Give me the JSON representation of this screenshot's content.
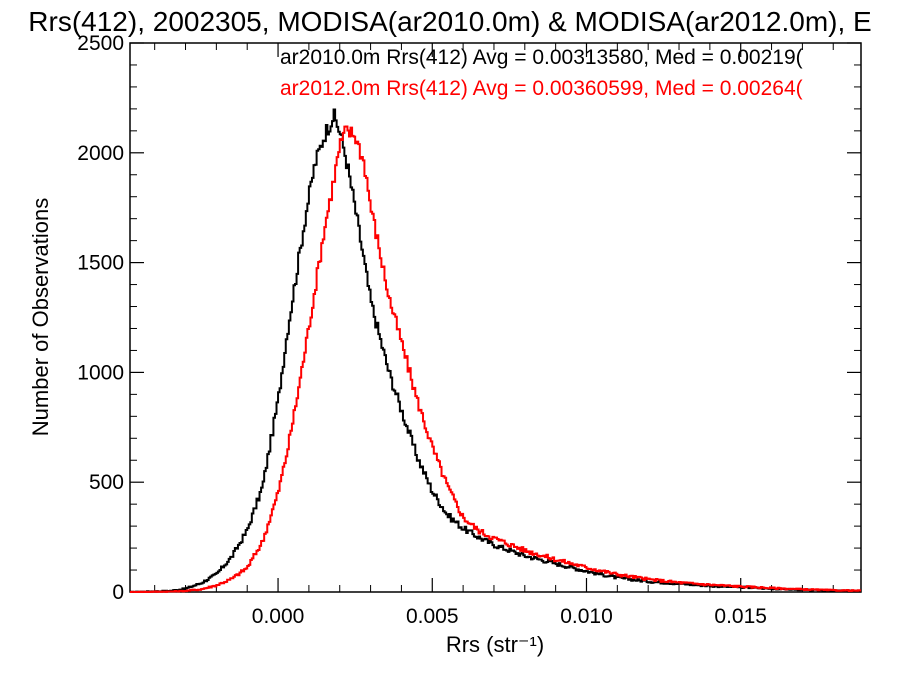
{
  "chart_data": {
    "type": "histogram",
    "title": "Rrs(412), 2002305, MODISA(ar2010.0m) & MODISA(ar2012.0m), E",
    "xlabel": "Rrs (str⁻¹)",
    "ylabel": "Number of Observations",
    "xlim": [
      -0.0048,
      0.0189
    ],
    "ylim": [
      0,
      2500
    ],
    "xticks": [
      0.0,
      0.005,
      0.01,
      0.015
    ],
    "xtick_labels": [
      "0.000",
      "0.005",
      "0.010",
      "0.015"
    ],
    "yticks": [
      0,
      500,
      1000,
      1500,
      2000,
      2500
    ],
    "ytick_labels": [
      "0",
      "500",
      "1000",
      "1500",
      "2000",
      "2500"
    ],
    "grid": false,
    "legend_placement": "top",
    "series": [
      {
        "name": "ar2010.0m",
        "legend_text": "ar2010.0m Rrs(412) Avg = 0.00313580, Med = 0.00219(",
        "color": "#000000",
        "x": [
          -0.0048,
          -0.0035,
          -0.003,
          -0.0025,
          -0.002,
          -0.0015,
          -0.001,
          -0.0005,
          0.0,
          0.0003,
          0.0006,
          0.0009,
          0.0012,
          0.0015,
          0.0018,
          0.002,
          0.0022,
          0.0025,
          0.0028,
          0.003,
          0.0033,
          0.0036,
          0.004,
          0.0045,
          0.005,
          0.0055,
          0.006,
          0.0065,
          0.007,
          0.008,
          0.009,
          0.01,
          0.011,
          0.012,
          0.013,
          0.014,
          0.015,
          0.016,
          0.017,
          0.018,
          0.0189
        ],
        "y": [
          0,
          5,
          15,
          40,
          80,
          160,
          280,
          480,
          870,
          1180,
          1450,
          1720,
          1950,
          2080,
          2170,
          2100,
          1980,
          1750,
          1500,
          1330,
          1160,
          1000,
          830,
          620,
          460,
          350,
          290,
          250,
          215,
          165,
          130,
          95,
          65,
          48,
          38,
          28,
          22,
          15,
          10,
          6,
          5
        ]
      },
      {
        "name": "ar2012.0m",
        "legend_text": "ar2012.0m Rrs(412) Avg = 0.00360599, Med = 0.00264(",
        "color": "#ff0000",
        "x": [
          -0.0048,
          -0.0035,
          -0.003,
          -0.0025,
          -0.002,
          -0.0015,
          -0.001,
          -0.0005,
          0.0,
          0.0003,
          0.0006,
          0.0009,
          0.0012,
          0.0015,
          0.0018,
          0.002,
          0.0022,
          0.0025,
          0.0028,
          0.003,
          0.0033,
          0.0036,
          0.004,
          0.0045,
          0.005,
          0.0055,
          0.006,
          0.0065,
          0.007,
          0.008,
          0.009,
          0.01,
          0.011,
          0.012,
          0.013,
          0.014,
          0.015,
          0.016,
          0.017,
          0.018,
          0.0189
        ],
        "y": [
          0,
          2,
          5,
          12,
          30,
          60,
          110,
          230,
          450,
          640,
          870,
          1120,
          1380,
          1650,
          1870,
          2030,
          2100,
          2080,
          1950,
          1760,
          1550,
          1340,
          1140,
          880,
          660,
          480,
          340,
          280,
          245,
          190,
          148,
          112,
          80,
          58,
          43,
          33,
          25,
          18,
          12,
          8,
          6
        ]
      }
    ]
  }
}
